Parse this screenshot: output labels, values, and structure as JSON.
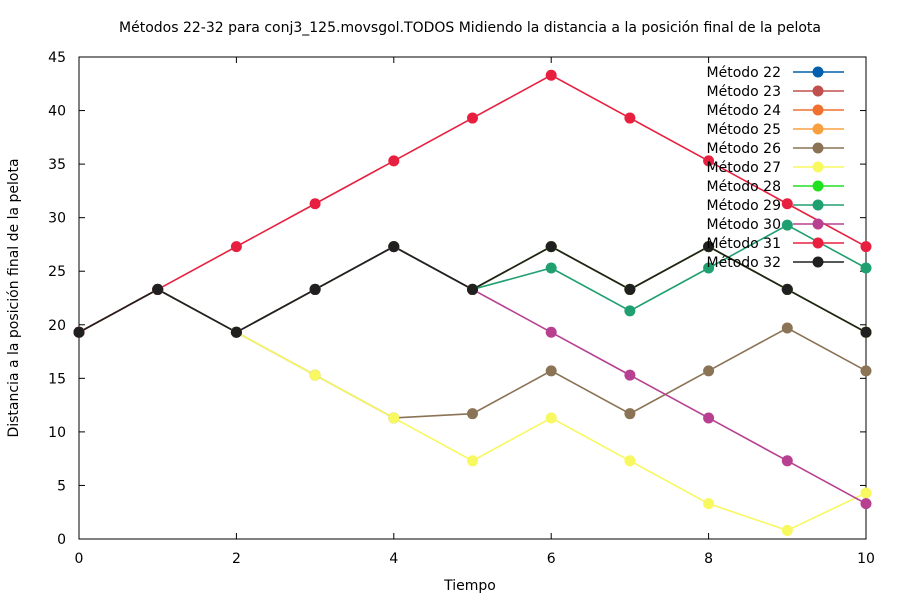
{
  "chart_data": {
    "type": "line",
    "title": "Métodos 22-32 para conj3_125.movsgol.TODOS Midiendo la distancia a la posición final de la pelota",
    "xlabel": "Tiempo",
    "ylabel": "Distancia a la posición final de la pelota",
    "xlim": [
      0,
      10
    ],
    "ylim": [
      0,
      45
    ],
    "xticks": [
      0,
      2,
      4,
      6,
      8,
      10
    ],
    "yticks": [
      0,
      5,
      10,
      15,
      20,
      25,
      30,
      35,
      40,
      45
    ],
    "grid": false,
    "legend_position": "top-right",
    "x": [
      0,
      1,
      2,
      3,
      4,
      5,
      6,
      7,
      8,
      9,
      10
    ],
    "series": [
      {
        "name": "Método 22",
        "color": "#0060ad",
        "values": [
          19.3,
          23.3,
          19.3,
          23.3,
          27.3,
          23.3,
          27.3,
          23.3,
          27.3,
          23.3,
          19.3
        ]
      },
      {
        "name": "Método 23",
        "color": "#c0504d",
        "values": [
          19.3,
          23.3,
          19.3,
          23.3,
          27.3,
          23.3,
          27.3,
          23.3,
          27.3,
          23.3,
          19.3
        ]
      },
      {
        "name": "Método 24",
        "color": "#f07030",
        "values": [
          19.3,
          23.3,
          19.3,
          23.3,
          27.3,
          23.3,
          27.3,
          23.3,
          27.3,
          23.3,
          19.3
        ]
      },
      {
        "name": "Método 25",
        "color": "#f8a040",
        "values": [
          19.3,
          23.3,
          19.3,
          23.3,
          27.3,
          23.3,
          27.3,
          23.3,
          27.3,
          23.3,
          19.3
        ]
      },
      {
        "name": "Método 26",
        "color": "#8b7355",
        "values": [
          19.3,
          23.3,
          19.3,
          15.3,
          11.3,
          11.7,
          15.7,
          11.7,
          15.7,
          19.7,
          15.7
        ]
      },
      {
        "name": "Método 27",
        "color": "#f8f860",
        "values": [
          19.3,
          23.3,
          19.3,
          15.3,
          11.3,
          7.3,
          11.3,
          7.3,
          3.3,
          0.8,
          4.3
        ]
      },
      {
        "name": "Método 28",
        "color": "#20e020",
        "values": [
          19.3,
          23.3,
          19.3,
          23.3,
          27.3,
          23.3,
          27.3,
          23.3,
          27.3,
          23.3,
          19.3
        ]
      },
      {
        "name": "Método 29",
        "color": "#20a070",
        "values": [
          19.3,
          23.3,
          19.3,
          23.3,
          27.3,
          23.3,
          25.3,
          21.3,
          25.3,
          29.3,
          25.3
        ]
      },
      {
        "name": "Método 30",
        "color": "#b84090",
        "values": [
          19.3,
          23.3,
          19.3,
          23.3,
          27.3,
          23.3,
          19.3,
          15.3,
          11.3,
          7.3,
          3.3
        ]
      },
      {
        "name": "Método 31",
        "color": "#e82040",
        "values": [
          19.3,
          23.3,
          27.3,
          31.3,
          35.3,
          39.3,
          43.3,
          39.3,
          35.3,
          31.3,
          27.3
        ]
      },
      {
        "name": "Método 32",
        "color": "#202020",
        "values": [
          19.3,
          23.3,
          19.3,
          23.3,
          27.3,
          23.3,
          27.3,
          23.3,
          27.3,
          23.3,
          19.3
        ]
      }
    ]
  }
}
